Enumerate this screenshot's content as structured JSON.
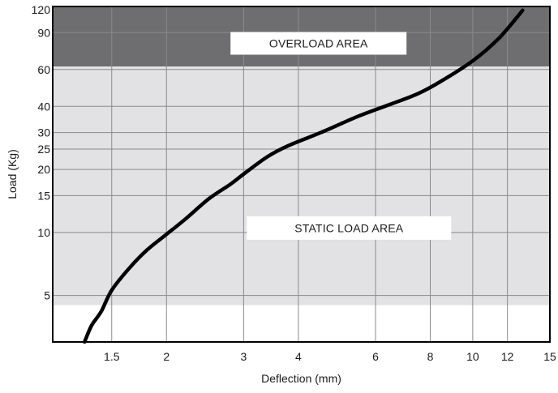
{
  "chart_data": {
    "type": "line",
    "xlabel": "Deflection (mm)",
    "ylabel": "Load (Kg)",
    "x_scale": "log",
    "y_scale": "log",
    "xlim": [
      1.1,
      15
    ],
    "ylim": [
      3,
      120
    ],
    "x_ticks": [
      1.5,
      2,
      3,
      4,
      6,
      8,
      10,
      12,
      15
    ],
    "y_ticks": [
      5,
      10,
      15,
      20,
      25,
      30,
      40,
      60,
      90,
      120
    ],
    "grid": true,
    "regions": [
      {
        "label": "OVERLOAD AREA",
        "y_from": 62,
        "y_to": 120,
        "color": "#6e6e70"
      },
      {
        "label": "STATIC LOAD AREA",
        "y_from": 4.5,
        "y_to": 62,
        "color": "#e2e2e4"
      }
    ],
    "series": [
      {
        "color": "#000000",
        "x": [
          1.3,
          1.35,
          1.42,
          1.5,
          1.65,
          1.8,
          2.0,
          2.2,
          2.5,
          2.8,
          3.0,
          3.4,
          3.8,
          4.5,
          5.5,
          6.5,
          7.5,
          8.5,
          10.0,
          11.5,
          13.0
        ],
        "y": [
          3.0,
          3.6,
          4.2,
          5.3,
          6.8,
          8.2,
          9.8,
          11.5,
          14.5,
          17.0,
          19.0,
          23.0,
          26.0,
          30.0,
          36.0,
          41.0,
          46.0,
          53.0,
          66.0,
          85.0,
          115.0
        ]
      }
    ]
  }
}
